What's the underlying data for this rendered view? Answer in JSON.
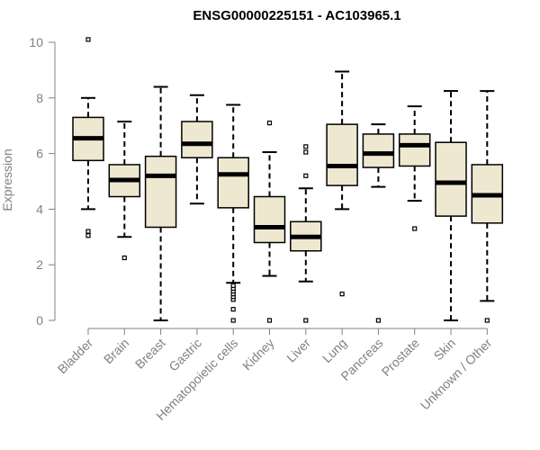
{
  "chart_data": {
    "type": "boxplot",
    "title": "ENSG00000225151 - AC103965.1",
    "xlabel": "",
    "ylabel": "Expression",
    "ylim": [
      0,
      10
    ],
    "yticks": [
      0,
      2,
      4,
      6,
      8,
      10
    ],
    "box_color": "#efe8d0",
    "categories": [
      "Bladder",
      "Brain",
      "Breast",
      "Gastric",
      "Hematopoietic cells",
      "Kidney",
      "Liver",
      "Lung",
      "Pancreas",
      "Prostate",
      "Skin",
      "Unknown / Other"
    ],
    "boxes": [
      {
        "label": "Bladder",
        "whisker_low": 4.0,
        "q1": 5.75,
        "median": 6.55,
        "q3": 7.3,
        "whisker_high": 8.0,
        "outliers": [
          3.05,
          3.2,
          10.1
        ]
      },
      {
        "label": "Brain",
        "whisker_low": 3.0,
        "q1": 4.45,
        "median": 5.05,
        "q3": 5.6,
        "whisker_high": 7.15,
        "outliers": [
          2.25
        ]
      },
      {
        "label": "Breast",
        "whisker_low": 0.0,
        "q1": 3.35,
        "median": 5.2,
        "q3": 5.9,
        "whisker_high": 8.4,
        "outliers": []
      },
      {
        "label": "Gastric",
        "whisker_low": 4.2,
        "q1": 5.85,
        "median": 6.35,
        "q3": 7.15,
        "whisker_high": 8.1,
        "outliers": []
      },
      {
        "label": "Hematopoietic cells",
        "whisker_low": 1.35,
        "q1": 4.05,
        "median": 5.25,
        "q3": 5.85,
        "whisker_high": 7.75,
        "outliers": [
          0.0,
          0.4,
          0.75,
          0.85,
          0.95,
          1.05,
          1.15,
          1.25
        ]
      },
      {
        "label": "Kidney",
        "whisker_low": 1.6,
        "q1": 2.8,
        "median": 3.35,
        "q3": 4.45,
        "whisker_high": 6.05,
        "outliers": [
          0.0,
          7.1
        ]
      },
      {
        "label": "Liver",
        "whisker_low": 1.4,
        "q1": 2.5,
        "median": 3.0,
        "q3": 3.55,
        "whisker_high": 4.75,
        "outliers": [
          0.0,
          5.2,
          6.05,
          6.25
        ]
      },
      {
        "label": "Lung",
        "whisker_low": 4.0,
        "q1": 4.85,
        "median": 5.55,
        "q3": 7.05,
        "whisker_high": 8.95,
        "outliers": [
          0.95
        ]
      },
      {
        "label": "Pancreas",
        "whisker_low": 4.8,
        "q1": 5.5,
        "median": 6.0,
        "q3": 6.7,
        "whisker_high": 7.05,
        "outliers": [
          0.0
        ]
      },
      {
        "label": "Prostate",
        "whisker_low": 4.3,
        "q1": 5.55,
        "median": 6.3,
        "q3": 6.7,
        "whisker_high": 7.7,
        "outliers": [
          3.3
        ]
      },
      {
        "label": "Skin",
        "whisker_low": 0.0,
        "q1": 3.75,
        "median": 4.95,
        "q3": 6.4,
        "whisker_high": 8.25,
        "outliers": []
      },
      {
        "label": "Unknown / Other",
        "whisker_low": 0.7,
        "q1": 3.5,
        "median": 4.5,
        "q3": 5.6,
        "whisker_high": 8.25,
        "outliers": [
          0.0
        ]
      }
    ]
  }
}
